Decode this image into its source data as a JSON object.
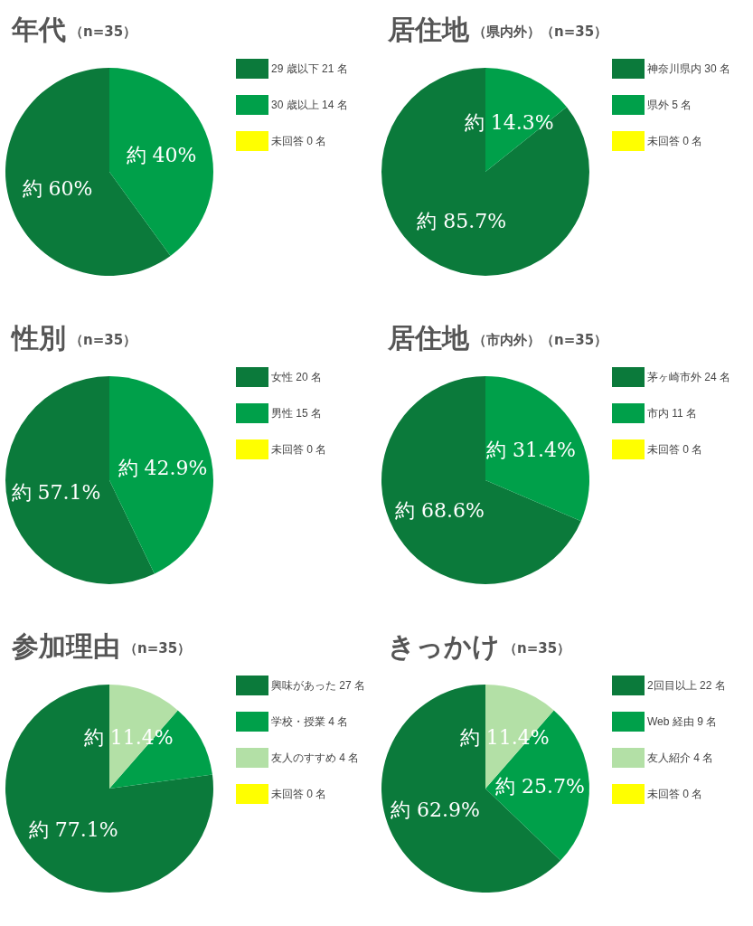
{
  "chart_data": [
    {
      "type": "pie",
      "title": "年代",
      "subtitle": "（n=35）",
      "categories": [
        "29 歳以下 21 名",
        "30 歳以上 14 名",
        "未回答 0 名"
      ],
      "values": [
        21,
        14,
        0
      ],
      "colors": [
        "#0b7a3b",
        "#00a04a",
        "#ffff00"
      ],
      "value_labels": [
        "約 60%",
        "約 40%",
        null
      ],
      "legend": "right"
    },
    {
      "type": "pie",
      "title": "居住地",
      "subtitle": "（県内外）（n=35）",
      "categories": [
        "神奈川県内 30 名",
        "県外 5 名",
        "未回答 0 名"
      ],
      "values": [
        30,
        5,
        0
      ],
      "colors": [
        "#0b7a3b",
        "#00a04a",
        "#ffff00"
      ],
      "value_labels": [
        "約 85.7%",
        "約 14.3%",
        null
      ],
      "legend": "right"
    },
    {
      "type": "pie",
      "title": "性別",
      "subtitle": "（n=35）",
      "categories": [
        "女性 20 名",
        "男性 15 名",
        "未回答 0 名"
      ],
      "values": [
        20,
        15,
        0
      ],
      "colors": [
        "#0b7a3b",
        "#00a04a",
        "#ffff00"
      ],
      "value_labels": [
        "約 57.1%",
        "約 42.9%",
        null
      ],
      "legend": "right"
    },
    {
      "type": "pie",
      "title": "居住地",
      "subtitle": "（市内外）（n=35）",
      "categories": [
        "茅ヶ崎市外 24 名",
        "市内 11 名",
        "未回答 0 名"
      ],
      "values": [
        24,
        11,
        0
      ],
      "colors": [
        "#0b7a3b",
        "#00a04a",
        "#ffff00"
      ],
      "value_labels": [
        "約 68.6%",
        "約 31.4%",
        null
      ],
      "legend": "right"
    },
    {
      "type": "pie",
      "title": "参加理由",
      "subtitle": "（n=35）",
      "categories": [
        "興味があった 27 名",
        "学校・授業 4 名",
        "友人のすすめ 4 名",
        "未回答 0 名"
      ],
      "values": [
        27,
        4,
        4,
        0
      ],
      "colors": [
        "#0b7a3b",
        "#00a04a",
        "#b3e0a6",
        "#ffff00"
      ],
      "value_labels": [
        "約 77.1%",
        null,
        "約 11.4%",
        null
      ],
      "legend": "right"
    },
    {
      "type": "pie",
      "title": "きっかけ",
      "subtitle": "（n=35）",
      "categories": [
        "2回目以上 22 名",
        "Web 経由 9 名",
        "友人紹介 4 名",
        "未回答 0 名"
      ],
      "values": [
        22,
        9,
        4,
        0
      ],
      "colors": [
        "#0b7a3b",
        "#00a04a",
        "#b3e0a6",
        "#ffff00"
      ],
      "value_labels": [
        "約 62.9%",
        "約 25.7%",
        "約 11.4%",
        null
      ],
      "legend": "right"
    }
  ]
}
